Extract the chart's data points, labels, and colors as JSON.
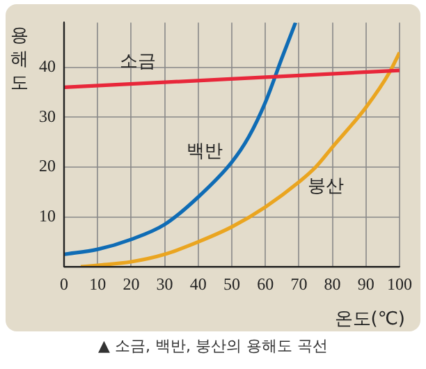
{
  "chart_data": {
    "type": "line",
    "xlabel": "온도(℃)",
    "ylabel": "용해도",
    "annotations": [
      "▲ 소금, 백반, 붕산의 용해도 곡선"
    ],
    "xlim": [
      0,
      100
    ],
    "xticks": [
      0,
      10,
      20,
      30,
      40,
      50,
      60,
      70,
      80,
      90,
      100
    ],
    "ylim": [
      0,
      49
    ],
    "yticks": [
      {
        "value": 0,
        "label": null
      },
      10,
      20,
      30,
      40
    ],
    "grid": true,
    "legend": false,
    "marker": "none",
    "line_style": "solid",
    "series": [
      {
        "name": "소금",
        "color": "#e8273a",
        "x": [
          0,
          100
        ],
        "values": [
          36,
          39.4
        ]
      },
      {
        "name": "백반",
        "color": "#0f6cb5",
        "x": [
          0,
          10,
          20,
          30,
          40,
          50,
          55,
          60,
          65,
          69
        ],
        "values": [
          2.5,
          3.5,
          5.5,
          8.5,
          14,
          21,
          26,
          33,
          42,
          49
        ]
      },
      {
        "name": "붕산",
        "color": "#eaa520",
        "x": [
          5,
          10,
          20,
          30,
          40,
          50,
          60,
          70,
          75,
          80,
          90,
          97,
          100
        ],
        "values": [
          0,
          0.3,
          1,
          2.5,
          5,
          8,
          12,
          17,
          20,
          24,
          32,
          39,
          43
        ]
      }
    ]
  }
}
